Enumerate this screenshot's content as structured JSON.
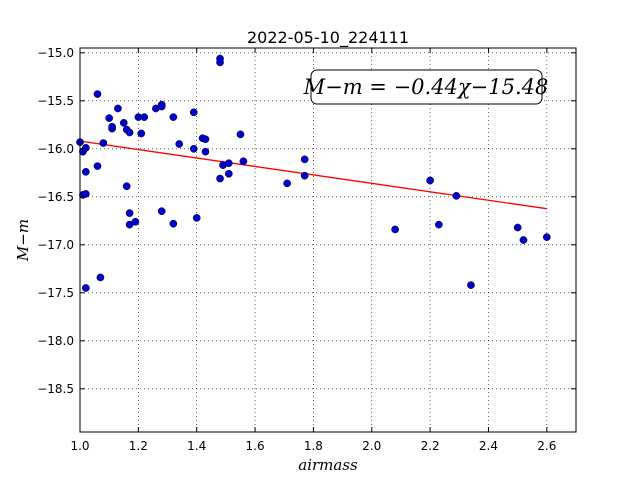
{
  "chart_data": {
    "type": "scatter",
    "title": "2022-05-10_224111",
    "xlabel": "airmass",
    "ylabel": "M−m",
    "xlim": [
      1.0,
      2.7
    ],
    "ylim": [
      -18.95,
      -14.95
    ],
    "x_ticks": [
      1.0,
      1.2,
      1.4,
      1.6,
      1.8,
      2.0,
      2.2,
      2.4,
      2.6
    ],
    "x_tick_labels": [
      "1.0",
      "1.2",
      "1.4",
      "1.6",
      "1.8",
      "2.0",
      "2.2",
      "2.4",
      "2.6"
    ],
    "y_ticks": [
      -15.0,
      -15.5,
      -16.0,
      -16.5,
      -17.0,
      -17.5,
      -18.0,
      -18.5
    ],
    "y_tick_labels": [
      "−15.0",
      "−15.5",
      "−16.0",
      "−16.5",
      "−17.0",
      "−17.5",
      "−18.0",
      "−18.5"
    ],
    "grid": true,
    "annotation": "M−m = −0.44χ−15.48",
    "annotation_position": "top-right",
    "fit": {
      "slope": -0.44,
      "intercept": -15.48,
      "x_range": [
        1.0,
        2.6
      ],
      "color": "#ff0000"
    },
    "point_color": "#0000cc",
    "points": [
      [
        1.0,
        -15.93
      ],
      [
        1.01,
        -16.03
      ],
      [
        1.01,
        -16.48
      ],
      [
        1.02,
        -16.47
      ],
      [
        1.02,
        -15.99
      ],
      [
        1.02,
        -17.45
      ],
      [
        1.02,
        -16.24
      ],
      [
        1.06,
        -15.43
      ],
      [
        1.06,
        -16.18
      ],
      [
        1.07,
        -17.34
      ],
      [
        1.08,
        -15.94
      ],
      [
        1.1,
        -15.68
      ],
      [
        1.11,
        -15.79
      ],
      [
        1.11,
        -15.77
      ],
      [
        1.13,
        -15.58
      ],
      [
        1.15,
        -15.73
      ],
      [
        1.16,
        -15.8
      ],
      [
        1.16,
        -16.39
      ],
      [
        1.17,
        -15.83
      ],
      [
        1.17,
        -16.67
      ],
      [
        1.17,
        -16.79
      ],
      [
        1.19,
        -16.76
      ],
      [
        1.2,
        -15.67
      ],
      [
        1.21,
        -15.84
      ],
      [
        1.22,
        -15.67
      ],
      [
        1.26,
        -15.58
      ],
      [
        1.28,
        -15.54
      ],
      [
        1.28,
        -15.56
      ],
      [
        1.28,
        -16.65
      ],
      [
        1.32,
        -15.67
      ],
      [
        1.32,
        -16.78
      ],
      [
        1.34,
        -15.95
      ],
      [
        1.39,
        -16.0
      ],
      [
        1.39,
        -15.62
      ],
      [
        1.4,
        -16.72
      ],
      [
        1.42,
        -15.89
      ],
      [
        1.43,
        -15.9
      ],
      [
        1.43,
        -16.03
      ],
      [
        1.48,
        -15.06
      ],
      [
        1.48,
        -15.1
      ],
      [
        1.48,
        -16.31
      ],
      [
        1.49,
        -16.17
      ],
      [
        1.51,
        -16.26
      ],
      [
        1.51,
        -16.15
      ],
      [
        1.55,
        -15.85
      ],
      [
        1.56,
        -16.13
      ],
      [
        1.71,
        -16.36
      ],
      [
        1.77,
        -16.11
      ],
      [
        1.77,
        -16.28
      ],
      [
        2.08,
        -16.84
      ],
      [
        2.2,
        -16.33
      ],
      [
        2.23,
        -16.79
      ],
      [
        2.29,
        -16.49
      ],
      [
        2.34,
        -17.42
      ],
      [
        2.5,
        -16.82
      ],
      [
        2.52,
        -16.95
      ],
      [
        2.6,
        -16.92
      ]
    ]
  }
}
